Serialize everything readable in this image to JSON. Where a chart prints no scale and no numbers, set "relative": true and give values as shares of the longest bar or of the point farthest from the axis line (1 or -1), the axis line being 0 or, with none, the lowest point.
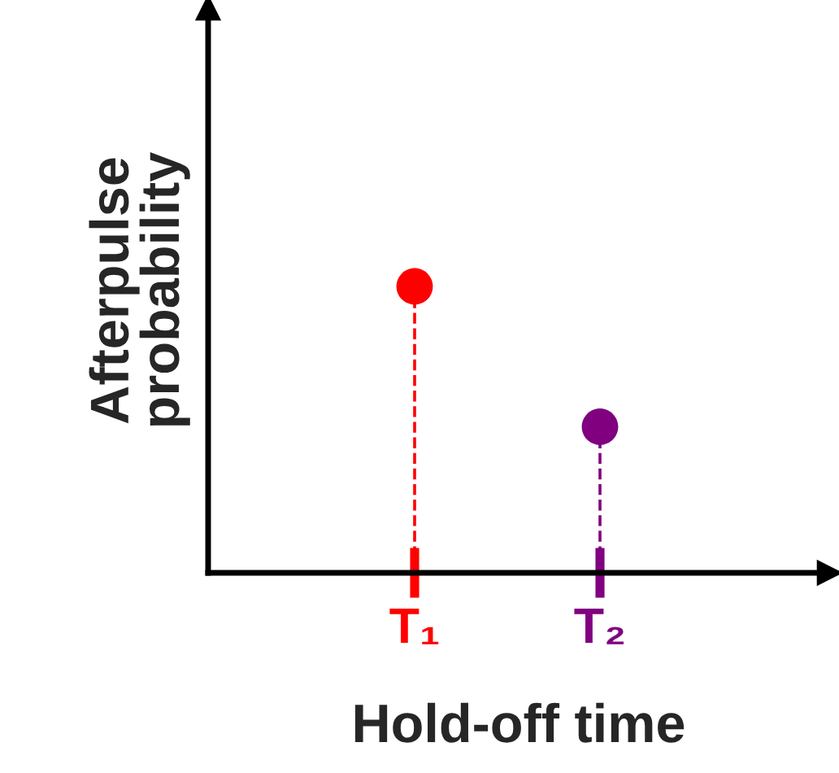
{
  "chart_data": {
    "type": "lollipop",
    "relative": true,
    "xlabel": "Hold-off time",
    "ylabel": "Afterpulse\nprobability",
    "categories": [
      "T₁",
      "T₂"
    ],
    "values": [
      1,
      0.51
    ],
    "colors": [
      "#ff0000",
      "#800080"
    ],
    "marker": "circle",
    "line_style": "dashed",
    "grid": false,
    "legend": false
  }
}
